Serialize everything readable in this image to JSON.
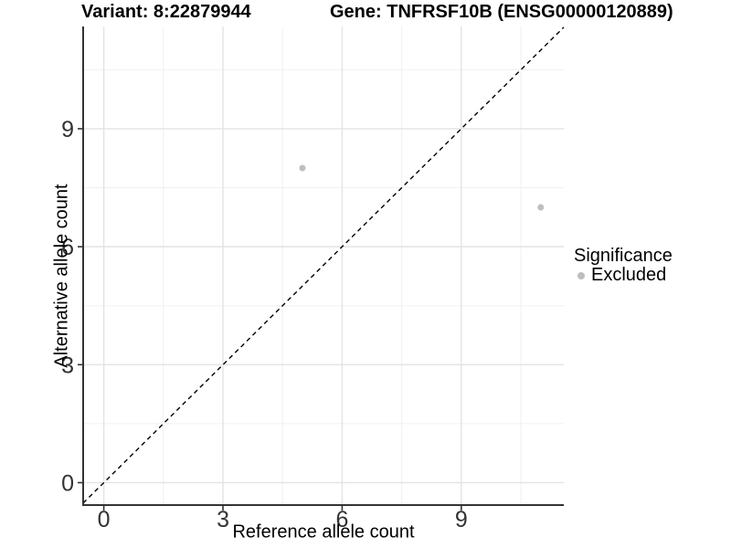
{
  "titles": {
    "variant": "Variant: 8:22879944",
    "gene": "Gene: TNFRSF10B (ENSG00000120889)"
  },
  "chart_data": {
    "type": "scatter",
    "xlabel": "Reference allele count",
    "ylabel": "Alternative allele count",
    "xlim": [
      -0.52,
      11.58
    ],
    "ylim": [
      -0.57,
      11.6
    ],
    "x_ticks": [
      0,
      3,
      6,
      9
    ],
    "y_ticks": [
      0,
      3,
      6,
      9
    ],
    "x_minor_ticks": [
      1.5,
      4.5,
      7.5,
      10.5
    ],
    "y_minor_ticks": [
      1.5,
      4.5,
      7.5,
      10.5
    ],
    "grid": true,
    "identity_line": {
      "type": "dashed",
      "color": "#000000",
      "equation": "y = x"
    },
    "series": [
      {
        "name": "Excluded",
        "color": "#bebebe",
        "points": [
          {
            "x": 5,
            "y": 8
          },
          {
            "x": 11,
            "y": 7
          }
        ]
      }
    ],
    "legend": {
      "position": "right",
      "title": "Significance",
      "items": [
        {
          "label": "Excluded",
          "color": "#bebebe"
        }
      ]
    },
    "colors": {
      "axis_line": "#333333",
      "tick_label": "#333333",
      "grid_major": "#e3e3e3",
      "grid_minor": "#f0f0f0",
      "background": "#ffffff"
    }
  }
}
